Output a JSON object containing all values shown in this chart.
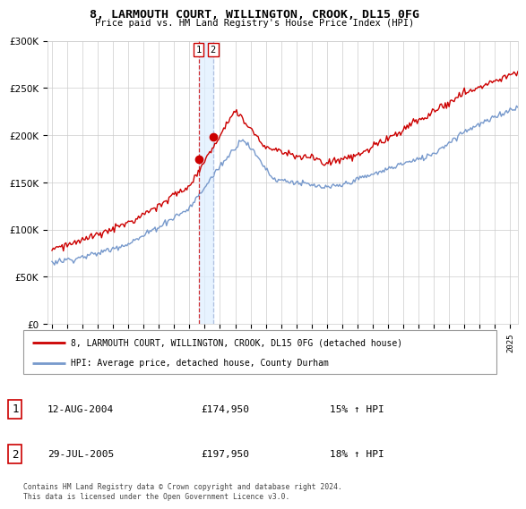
{
  "title": "8, LARMOUTH COURT, WILLINGTON, CROOK, DL15 0FG",
  "subtitle": "Price paid vs. HM Land Registry's House Price Index (HPI)",
  "legend_label_red": "8, LARMOUTH COURT, WILLINGTON, CROOK, DL15 0FG (detached house)",
  "legend_label_blue": "HPI: Average price, detached house, County Durham",
  "sale1_date": "12-AUG-2004",
  "sale1_price": 174950,
  "sale1_pct": "15%",
  "sale2_date": "29-JUL-2005",
  "sale2_price": 197950,
  "sale2_pct": "18%",
  "footer": "Contains HM Land Registry data © Crown copyright and database right 2024.\nThis data is licensed under the Open Government Licence v3.0.",
  "red_color": "#cc0000",
  "blue_color": "#7799cc",
  "vline1_color": "#cc0000",
  "vline2_color": "#aabbdd",
  "shade_color": "#ddeeff",
  "ylim": [
    0,
    300000
  ],
  "xlim_start": 1994.7,
  "xlim_end": 2025.5,
  "sale1_x": 2004.6,
  "sale1_y": 174950,
  "sale2_x": 2005.55,
  "sale2_y": 197950,
  "grid_color": "#cccccc",
  "figsize": [
    6.0,
    5.6
  ],
  "dpi": 100
}
